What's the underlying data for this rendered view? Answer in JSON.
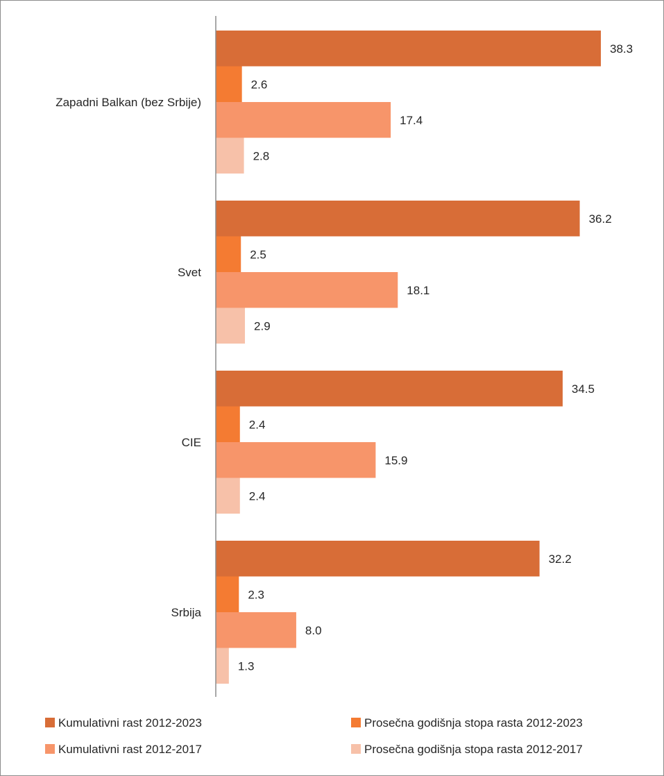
{
  "chart_data": {
    "type": "bar",
    "orientation": "horizontal",
    "title": "",
    "xlabel": "",
    "ylabel": "",
    "xlim": [
      0,
      38.3
    ],
    "grid": false,
    "legend_position": "bottom",
    "categories": [
      "Zapadni Balkan (bez Srbije)",
      "Svet",
      "CIE",
      "Srbija"
    ],
    "series": [
      {
        "name": "Kumulativni rast 2012-2023",
        "color": "#D86D37",
        "values": [
          38.3,
          36.2,
          34.5,
          32.2
        ],
        "labels": [
          "38.3",
          "36.2",
          "34.5",
          "32.2"
        ]
      },
      {
        "name": "Prosečna godišnja stopa rasta 2012-2023",
        "color": "#F47B32",
        "values": [
          2.6,
          2.5,
          2.4,
          2.3
        ],
        "labels": [
          "2.6",
          "2.5",
          "2.4",
          "2.3"
        ]
      },
      {
        "name": "Kumulativni rast 2012-2017",
        "color": "#F7956A",
        "values": [
          17.4,
          18.1,
          15.9,
          8.0
        ],
        "labels": [
          "17.4",
          "18.1",
          "15.9",
          "8.0"
        ]
      },
      {
        "name": "Prosečna godišnja stopa rasta 2012-2017",
        "color": "#F7C1A9",
        "values": [
          2.8,
          2.9,
          2.4,
          1.3
        ],
        "labels": [
          "2.8",
          "2.9",
          "2.4",
          "1.3"
        ]
      }
    ]
  }
}
